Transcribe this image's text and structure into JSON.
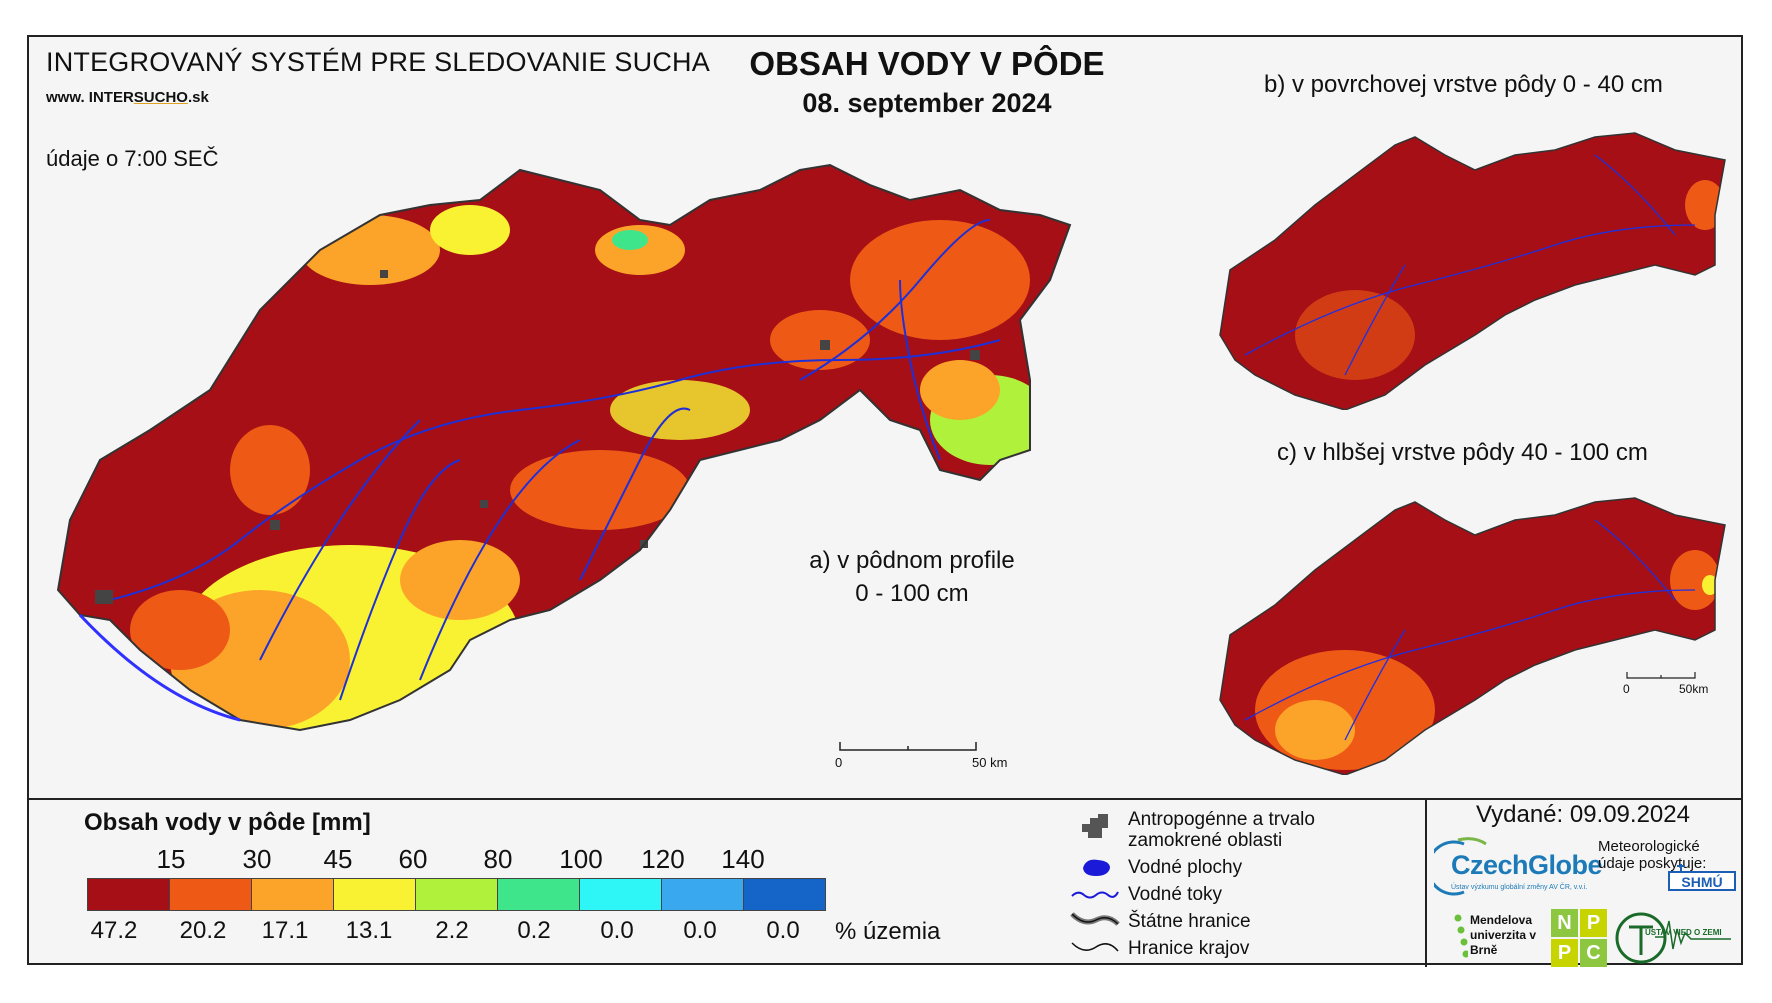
{
  "header": {
    "system_title": "INTEGROVANÝ SYSTÉM PRE SLEDOVANIE SUCHA",
    "url_prefix": "www. INTER",
    "url_highlight": "SUCHO",
    "url_suffix": ".sk",
    "data_time": "údaje o 7:00 SEČ",
    "main_title": "OBSAH VODY V PÔDE",
    "date": "08. september 2024"
  },
  "maps": {
    "a_label_line1": "a) v pôdnom profile",
    "a_label_line2": "0 - 100 cm",
    "b_label": "b) v povrchovej vrstve pôdy 0 - 40 cm",
    "c_label": "c) v hlbšej vrstve pôdy 40 - 100 cm",
    "scale_main": {
      "start": "0",
      "end": "50 km"
    },
    "scale_small": {
      "start": "0",
      "end": "50km"
    }
  },
  "legend": {
    "title": "Obsah vody v pôde  [mm]",
    "thresholds": [
      "15",
      "30",
      "45",
      "60",
      "80",
      "100",
      "120",
      "140"
    ],
    "classes": [
      {
        "color": "#a50f15",
        "percent": "47.2"
      },
      {
        "color": "#ee5a16",
        "percent": "20.2"
      },
      {
        "color": "#fca429",
        "percent": "17.1"
      },
      {
        "color": "#f8f233",
        "percent": "13.1"
      },
      {
        "color": "#b0f23b",
        "percent": "2.2"
      },
      {
        "color": "#3fe58b",
        "percent": "0.2"
      },
      {
        "color": "#2ef6f6",
        "percent": "0.0"
      },
      {
        "color": "#3aa8ee",
        "percent": "0.0"
      },
      {
        "color": "#1565c8",
        "percent": "0.0"
      }
    ],
    "percent_unit": "% územia"
  },
  "symbols": [
    {
      "icon": "urban-area-icon",
      "label": "Antropogénne a trvalo zamokrené oblasti"
    },
    {
      "icon": "water-body-icon",
      "label": "Vodné plochy"
    },
    {
      "icon": "river-icon",
      "label": "Vodné toky"
    },
    {
      "icon": "state-border-icon",
      "label": "Štátne hranice"
    },
    {
      "icon": "region-border-icon",
      "label": "Hranice krajov"
    }
  ],
  "footer": {
    "issued": "Vydané: 09.09.2024",
    "czechglobe": "CzechGlobe",
    "czechglobe_sub": "Ústav výzkumu globální změny AV ČR, v.v.i.",
    "meteo_text": "Meteorologické údaje poskytuje:",
    "shmu": "SHMÚ",
    "mendel": "Mendelova univerzita v Brně",
    "nppc": [
      "N",
      "P",
      "P",
      "C"
    ],
    "uvz": "ÚSTAV VIED O ZEMI"
  }
}
